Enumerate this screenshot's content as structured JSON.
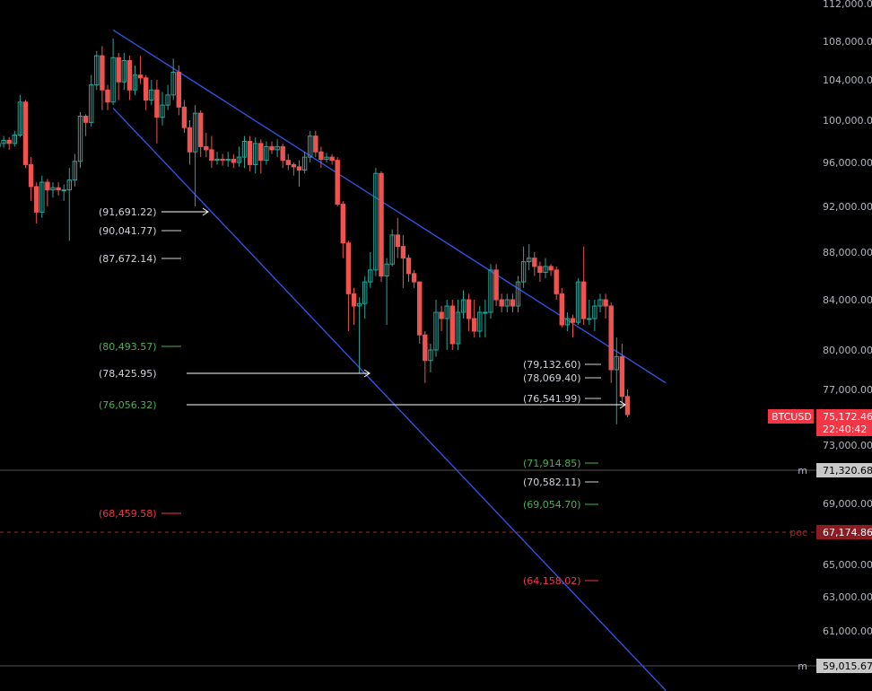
{
  "chart_data": {
    "type": "candlestick",
    "symbol": "BTCUSD",
    "countdown": "22:40:42",
    "colors": {
      "background": "#000000",
      "up": "#26a69a",
      "down": "#ef5350",
      "trendline": "#3355ee",
      "neutral_label": "#d1d4dc",
      "green_label": "#4caf50",
      "red_label": "#f23645",
      "price_badge": "#f23645",
      "poc_badge": "#8a1c22",
      "m_badge": "#c8c8c8"
    },
    "y_axis_ticks": [
      "112,000.00",
      "108,000.00",
      "104,000.00",
      "100,000.00",
      "96,000.00",
      "92,000.00",
      "88,000.00",
      "84,000.00",
      "80,000.00",
      "77,000.00",
      "73,000.00",
      "69,000.00",
      "65,000.00",
      "63,000.00",
      "61,000.00"
    ],
    "current_price": "75,172.46",
    "horizontal_levels": [
      {
        "tag": "m",
        "value": "71,320.68",
        "style": "solid"
      },
      {
        "tag": "poc",
        "value": "67,174.86",
        "style": "dashed"
      },
      {
        "tag": "m",
        "value": "59,015.67",
        "style": "solid"
      }
    ],
    "annotations": [
      {
        "text": "(91,691.22)",
        "color": "neutral",
        "arrow": true
      },
      {
        "text": "(90,041.77)",
        "color": "neutral",
        "arrow": false
      },
      {
        "text": "(87,672.14)",
        "color": "neutral",
        "arrow": false
      },
      {
        "text": "(80,493.57)",
        "color": "green",
        "arrow": false
      },
      {
        "text": "(78,425.95)",
        "color": "neutral",
        "arrow": true
      },
      {
        "text": "(76,056.32)",
        "color": "green",
        "arrow": true
      },
      {
        "text": "(68,459.58)",
        "color": "red",
        "arrow": false
      },
      {
        "text": "(79,132.60)",
        "color": "neutral",
        "arrow": false
      },
      {
        "text": "(78,069.40)",
        "color": "neutral",
        "arrow": false
      },
      {
        "text": "(76,541.99)",
        "color": "neutral",
        "arrow": false
      },
      {
        "text": "(71,914.85)",
        "color": "green",
        "arrow": false
      },
      {
        "text": "(70,582.11)",
        "color": "neutral",
        "arrow": false
      },
      {
        "text": "(69,054.70)",
        "color": "green",
        "arrow": false
      },
      {
        "text": "(64,158.02)",
        "color": "red",
        "arrow": false
      }
    ],
    "candles": [
      [
        97.5,
        97.8,
        97,
        98.2
      ],
      [
        97.8,
        98.1,
        97.4,
        98.5
      ],
      [
        98.1,
        97.8,
        97.2,
        98.4
      ],
      [
        97.8,
        98.6,
        97.5,
        99
      ],
      [
        98.6,
        101.8,
        98.4,
        102.5
      ],
      [
        101.8,
        95.8,
        95.5,
        102
      ],
      [
        95.8,
        93.8,
        92.5,
        96.5
      ],
      [
        93.8,
        91.5,
        90.5,
        94.2
      ],
      [
        91.5,
        94.2,
        91,
        94.8
      ],
      [
        94.2,
        93.5,
        92,
        94.5
      ],
      [
        93.5,
        93.7,
        92.8,
        94.2
      ],
      [
        93.7,
        93.5,
        93,
        94.2
      ],
      [
        93.5,
        93.5,
        92.5,
        94
      ],
      [
        93.5,
        94.4,
        89,
        95.5
      ],
      [
        94.4,
        96.1,
        93.8,
        96.8
      ],
      [
        96.1,
        100.4,
        95.5,
        100.8
      ],
      [
        100.4,
        99.8,
        98.5,
        100.6
      ],
      [
        99.8,
        103.5,
        99.4,
        104.5
      ],
      [
        103.5,
        106.5,
        103,
        107
      ],
      [
        106.5,
        103,
        101,
        107.5
      ],
      [
        103,
        101.8,
        101,
        103.5
      ],
      [
        101.8,
        106.3,
        101.5,
        108.3
      ],
      [
        106.3,
        103.8,
        102,
        106.8
      ],
      [
        103.8,
        106,
        103,
        106.8
      ],
      [
        106,
        103,
        102,
        106.5
      ],
      [
        103,
        104.5,
        102.5,
        105.5
      ],
      [
        104.5,
        104.2,
        103.6,
        106.5
      ],
      [
        104.2,
        102,
        101,
        104.5
      ],
      [
        102,
        103,
        101.5,
        104
      ],
      [
        103,
        100.3,
        97.8,
        104
      ],
      [
        100.3,
        101.5,
        99.5,
        102.8
      ],
      [
        101.5,
        102.5,
        101,
        103.5
      ],
      [
        102.5,
        104.8,
        102,
        106.2
      ],
      [
        104.8,
        101.3,
        100.5,
        105.5
      ],
      [
        101.3,
        99.3,
        98.8,
        102
      ],
      [
        99.3,
        97,
        95.8,
        100
      ],
      [
        97,
        100.7,
        92,
        101.5
      ],
      [
        100.7,
        97.5,
        96.5,
        101
      ],
      [
        97.5,
        97.2,
        96.5,
        98.8
      ],
      [
        97.2,
        96.2,
        95.5,
        98.5
      ],
      [
        96.2,
        96.3,
        95.8,
        97
      ],
      [
        96.3,
        96.2,
        95.7,
        96.8
      ],
      [
        96.2,
        96.3,
        95.6,
        97
      ],
      [
        96.3,
        96,
        95.5,
        96.8
      ],
      [
        96,
        96.5,
        95.6,
        97.5
      ],
      [
        96.5,
        98,
        95.5,
        98.5
      ],
      [
        98,
        95.8,
        95.2,
        98.5
      ],
      [
        95.8,
        97.8,
        95,
        98.4
      ],
      [
        97.8,
        96.2,
        95,
        98.2
      ],
      [
        96.2,
        97.5,
        95.8,
        98
      ],
      [
        97.5,
        97.2,
        96.8,
        98
      ],
      [
        97.2,
        97.5,
        96.5,
        98.2
      ],
      [
        97.5,
        96.2,
        95.5,
        97.8
      ],
      [
        96.2,
        95.8,
        95.3,
        96.8
      ],
      [
        95.8,
        95.6,
        94.8,
        96
      ],
      [
        95.6,
        95.3,
        93.8,
        96.2
      ],
      [
        95.3,
        96.5,
        95,
        97
      ],
      [
        96.5,
        98.5,
        96,
        99
      ],
      [
        98.5,
        97,
        96.5,
        99
      ],
      [
        97,
        96.3,
        95.5,
        97.5
      ],
      [
        96.3,
        96.5,
        96,
        96.9
      ],
      [
        96.5,
        96.2,
        95.8,
        96.8
      ],
      [
        96.2,
        92.2,
        92,
        96.5
      ],
      [
        92.2,
        88.8,
        87.5,
        92.5
      ],
      [
        88.8,
        84.5,
        81.5,
        89
      ],
      [
        84.5,
        83.5,
        82,
        85
      ],
      [
        83.5,
        83.7,
        78.2,
        84.2
      ],
      [
        83.7,
        85.5,
        82.5,
        86
      ],
      [
        85.5,
        86.5,
        85,
        88
      ],
      [
        86.5,
        95,
        86,
        95.5
      ],
      [
        95,
        86,
        85.5,
        95.2
      ],
      [
        86,
        87,
        82,
        87.5
      ],
      [
        87,
        89.5,
        86.8,
        90
      ],
      [
        89.5,
        88.5,
        87.5,
        91
      ],
      [
        88.5,
        87.5,
        85,
        89.5
      ],
      [
        87.5,
        86.2,
        85.5,
        87.8
      ],
      [
        86.2,
        85.5,
        85,
        86.5
      ],
      [
        85.5,
        81.2,
        80.5,
        85.5
      ],
      [
        81.2,
        79.2,
        77.5,
        81.5
      ],
      [
        79.2,
        80,
        78.3,
        80.5
      ],
      [
        80,
        83,
        79.5,
        84
      ],
      [
        83,
        82.5,
        81.5,
        83.5
      ],
      [
        82.5,
        83.5,
        80,
        84
      ],
      [
        83.5,
        80.5,
        80,
        84
      ],
      [
        80.5,
        83,
        80,
        84
      ],
      [
        83,
        84,
        82.5,
        84.8
      ],
      [
        84,
        82.5,
        81.5,
        84.5
      ],
      [
        82.5,
        81.5,
        81,
        84
      ],
      [
        81.5,
        83,
        81,
        83.5
      ],
      [
        83,
        83,
        81,
        84
      ],
      [
        83,
        86.5,
        82.5,
        87
      ],
      [
        86.5,
        84,
        83.5,
        87
      ],
      [
        84,
        83.5,
        83,
        84.5
      ],
      [
        83.5,
        84,
        83,
        84.5
      ],
      [
        84,
        83.5,
        83,
        84.5
      ],
      [
        83.5,
        85.5,
        83,
        86
      ],
      [
        85.5,
        87.2,
        85,
        88.5
      ],
      [
        87.2,
        87.5,
        86.5,
        88.7
      ],
      [
        87.5,
        86.8,
        86,
        88
      ],
      [
        86.8,
        86.3,
        85.5,
        87.2
      ],
      [
        86.3,
        86.8,
        85.8,
        87.5
      ],
      [
        86.8,
        86.5,
        86,
        87
      ],
      [
        86.5,
        84.5,
        84,
        86.8
      ],
      [
        84.5,
        82,
        81.8,
        85
      ],
      [
        82,
        82.5,
        81.5,
        83
      ],
      [
        82.5,
        82.2,
        81,
        82.8
      ],
      [
        82.2,
        85.5,
        82,
        85.8
      ],
      [
        85.5,
        82.5,
        82,
        88.5
      ],
      [
        82.5,
        82.5,
        82,
        84
      ],
      [
        82.5,
        83.5,
        81.5,
        84
      ],
      [
        83.5,
        84,
        83,
        84.5
      ],
      [
        84,
        83.5,
        82.5,
        84.5
      ],
      [
        83.5,
        78.5,
        77.5,
        83.8
      ],
      [
        78.5,
        79.5,
        74.5,
        81
      ],
      [
        79.5,
        76.5,
        76,
        80.5
      ],
      [
        76.5,
        75.2,
        75,
        77
      ]
    ],
    "trendlines": [
      {
        "from": [
          21,
          109.2
        ],
        "to": [
          122,
          77.5
        ]
      },
      {
        "from": [
          21,
          101.2
        ],
        "to": [
          122,
          57.5
        ]
      }
    ]
  }
}
